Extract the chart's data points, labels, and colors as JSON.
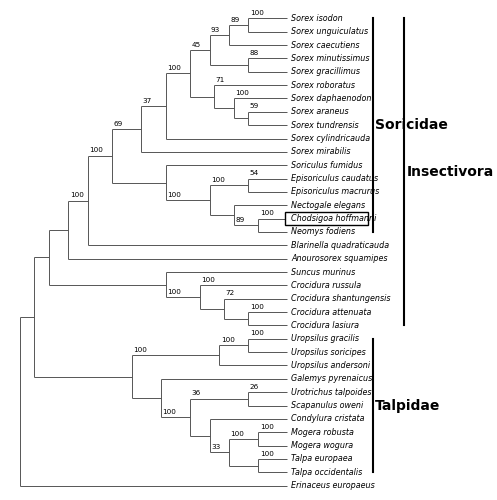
{
  "taxa": [
    "Sorex isodon",
    "Sorex unguiculatus",
    "Sorex caecutiens",
    "Sorex minutissimus",
    "Sorex gracillimus",
    "Sorex roboratus",
    "Sorex daphaenodon",
    "Sorex araneus",
    "Sorex tundrensis",
    "Sorex cylindricauda",
    "Sorex mirabilis",
    "Soriculus fumidus",
    "Episoriculus caudatus",
    "Episoriculus macrurus",
    "Nectogale elegans",
    "Chodsigoa hoffmanni",
    "Neomys fodiens",
    "Blarinella quadraticauda",
    "Anourosorex squamipes",
    "Suncus murinus",
    "Crocidura russula",
    "Crocidura shantungensis",
    "Crocidura attenuata",
    "Crocidura lasiura",
    "Uropsilus gracilis",
    "Uropsilus soricipes",
    "Uropsilus andersoni",
    "Galemys pyrenaicus",
    "Urotrichus talpoides",
    "Scapanulus oweni",
    "Condylura cristata",
    "Mogera robusta",
    "Mogera wogura",
    "Talpa europaea",
    "Talpa occidentalis",
    "Erinaceus europaeus"
  ],
  "soricidae_label": "Soricidae",
  "insectivora_label": "Insectivora",
  "talpidae_label": "Talpidae",
  "highlighted_taxon": "Chodsigoa hoffmanni",
  "line_color": "#555555",
  "background_color": "#ffffff",
  "taxon_fontsize": 5.8,
  "bootstrap_fontsize": 5.2,
  "family_fontsize": 10,
  "fig_width": 4.97,
  "fig_height": 5.0
}
